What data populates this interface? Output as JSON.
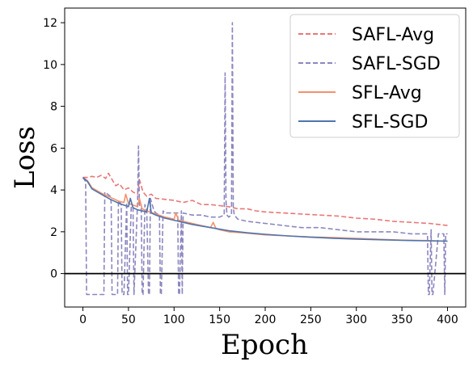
{
  "chart_data": {
    "type": "line",
    "xlabel": "Epoch",
    "ylabel": "Loss",
    "xlim": [
      -20,
      420
    ],
    "ylim": [
      -1.6,
      12.7
    ],
    "xticks": [
      0,
      50,
      100,
      150,
      200,
      250,
      300,
      350,
      400
    ],
    "yticks": [
      0,
      2,
      4,
      6,
      8,
      10,
      12
    ],
    "hline": 0,
    "legend_position": "top-right",
    "series": [
      {
        "name": "SAFL-Avg",
        "color": "#e8787a",
        "dash": true,
        "x": [
          0,
          5,
          10,
          15,
          20,
          25,
          28,
          32,
          36,
          40,
          45,
          50,
          55,
          60,
          62,
          66,
          70,
          75,
          80,
          90,
          100,
          110,
          120,
          130,
          140,
          150,
          160,
          170,
          180,
          190,
          200,
          220,
          240,
          260,
          280,
          300,
          320,
          340,
          360,
          380,
          400
        ],
        "y": [
          4.6,
          4.6,
          4.65,
          4.6,
          4.7,
          4.55,
          4.8,
          4.5,
          4.2,
          4.3,
          4.0,
          4.1,
          3.9,
          3.8,
          4.5,
          3.9,
          3.7,
          3.8,
          3.6,
          3.55,
          3.5,
          3.4,
          3.5,
          3.3,
          3.3,
          3.25,
          3.2,
          3.1,
          3.1,
          3.0,
          2.95,
          2.9,
          2.85,
          2.8,
          2.75,
          2.65,
          2.6,
          2.5,
          2.45,
          2.4,
          2.3
        ]
      },
      {
        "name": "SAFL-SGD",
        "color": "#8c87bf",
        "dash": true,
        "x": [
          0,
          3,
          4,
          10,
          20,
          23,
          24,
          30,
          31,
          32,
          35,
          38,
          39,
          42,
          43,
          45,
          48,
          49,
          50,
          53,
          55,
          56,
          60,
          61,
          62,
          64,
          65,
          66,
          68,
          70,
          72,
          73,
          74,
          78,
          80,
          84,
          85,
          86,
          88,
          90,
          95,
          100,
          104,
          105,
          106,
          108,
          109,
          110,
          120,
          130,
          140,
          150,
          155,
          156,
          157,
          158,
          160,
          163,
          164,
          165,
          166,
          170,
          180,
          200,
          220,
          240,
          260,
          280,
          300,
          320,
          340,
          360,
          378,
          379,
          380,
          382,
          383,
          384,
          390,
          396,
          397,
          398,
          400
        ],
        "y": [
          4.6,
          4.4,
          -1.0,
          -1.0,
          -1.0,
          -1.0,
          3.9,
          3.7,
          3.4,
          -1.0,
          -1.0,
          -1.0,
          3.5,
          3.3,
          -1.0,
          -1.0,
          3.4,
          -1.0,
          -1.0,
          3.2,
          3.2,
          -1.0,
          3.5,
          6.1,
          3.3,
          3.1,
          -1.0,
          -1.0,
          3.3,
          3.0,
          -1.0,
          -1.0,
          3.6,
          3.0,
          2.9,
          2.8,
          -1.0,
          -1.0,
          3.0,
          2.9,
          2.9,
          2.9,
          2.9,
          -1.0,
          -1.0,
          3.0,
          -1.0,
          2.9,
          2.8,
          2.8,
          2.7,
          2.7,
          2.8,
          9.6,
          3.5,
          2.8,
          2.7,
          2.8,
          12.0,
          3.2,
          2.8,
          2.6,
          2.5,
          2.4,
          2.3,
          2.2,
          2.2,
          2.1,
          2.0,
          2.0,
          2.0,
          1.9,
          1.9,
          -1.0,
          -1.0,
          2.1,
          -1.0,
          -1.0,
          1.9,
          1.9,
          -1.0,
          1.9,
          1.9
        ]
      },
      {
        "name": "SFL-Avg",
        "color": "#f4926b",
        "dash": false,
        "x": [
          0,
          5,
          10,
          20,
          30,
          40,
          45,
          47,
          50,
          60,
          62,
          65,
          70,
          80,
          90,
          100,
          102,
          105,
          110,
          120,
          130,
          140,
          143,
          146,
          150,
          160,
          175,
          200,
          225,
          250,
          275,
          300,
          325,
          350,
          375,
          400
        ],
        "y": [
          4.6,
          4.45,
          4.1,
          3.85,
          3.65,
          3.45,
          3.4,
          3.8,
          3.35,
          3.2,
          3.6,
          3.1,
          3.0,
          2.85,
          2.7,
          2.6,
          2.9,
          2.55,
          2.5,
          2.4,
          2.3,
          2.2,
          2.45,
          2.15,
          2.1,
          2.0,
          1.95,
          1.85,
          1.8,
          1.75,
          1.72,
          1.68,
          1.64,
          1.6,
          1.58,
          1.55
        ]
      },
      {
        "name": "SFL-SGD",
        "color": "#4f74ad",
        "dash": false,
        "x": [
          0,
          5,
          10,
          20,
          30,
          40,
          50,
          52,
          55,
          60,
          70,
          73,
          75,
          80,
          90,
          100,
          120,
          140,
          160,
          180,
          200,
          225,
          250,
          275,
          300,
          325,
          350,
          375,
          400
        ],
        "y": [
          4.6,
          4.4,
          4.05,
          3.8,
          3.55,
          3.35,
          3.2,
          3.6,
          3.15,
          3.05,
          2.95,
          3.6,
          2.9,
          2.8,
          2.65,
          2.55,
          2.35,
          2.2,
          2.05,
          1.95,
          1.88,
          1.8,
          1.74,
          1.69,
          1.65,
          1.62,
          1.59,
          1.57,
          1.55
        ]
      }
    ]
  }
}
